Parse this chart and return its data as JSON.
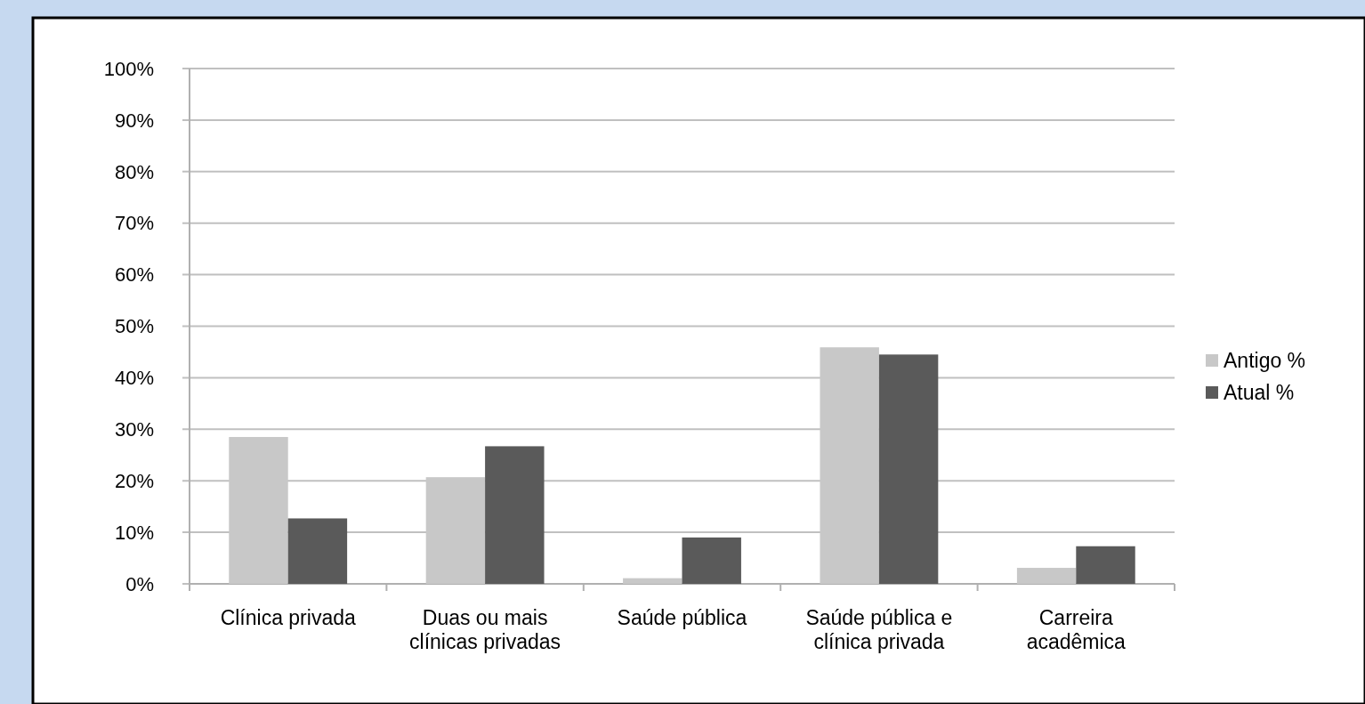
{
  "chart_data": {
    "type": "bar",
    "categories": [
      "Clínica privada",
      "Duas ou mais clínicas privadas",
      "Saúde pública",
      "Saúde pública e clínica privada",
      "Carreira acadêmica"
    ],
    "series": [
      {
        "name": "Antigo %",
        "color": "#c8c8c8",
        "values": [
          28.5,
          20.7,
          1.1,
          45.9,
          3.1
        ]
      },
      {
        "name": "Atual %",
        "color": "#5a5a5a",
        "values": [
          12.7,
          26.7,
          9.0,
          44.5,
          7.3
        ]
      }
    ],
    "ylim": [
      0,
      100
    ],
    "yticks": [
      {
        "value": 0,
        "label": "0%"
      },
      {
        "value": 10,
        "label": "10%"
      },
      {
        "value": 20,
        "label": "20%"
      },
      {
        "value": 30,
        "label": "30%"
      },
      {
        "value": 40,
        "label": "40%"
      },
      {
        "value": 50,
        "label": "50%"
      },
      {
        "value": 60,
        "label": "60%"
      },
      {
        "value": 70,
        "label": "70%"
      },
      {
        "value": 80,
        "label": "80%"
      },
      {
        "value": 90,
        "label": "90%"
      },
      {
        "value": 100,
        "label": "100%"
      }
    ],
    "grid": "y",
    "legend": "right"
  }
}
